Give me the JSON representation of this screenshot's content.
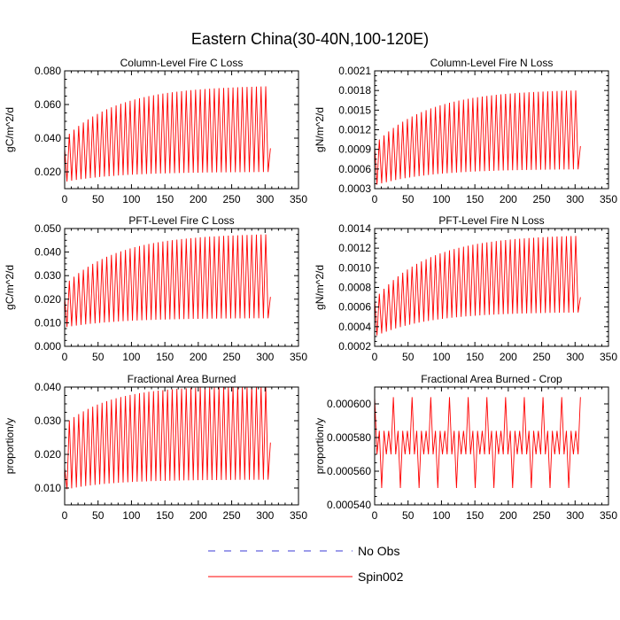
{
  "figure_title": "Eastern China(30-40N,100-120E)",
  "legend": [
    {
      "label": "No Obs",
      "color": "#3b3bd6",
      "style": "dashed"
    },
    {
      "label": "Spin002",
      "color": "#ff0000",
      "style": "solid"
    }
  ],
  "chart_data": [
    {
      "type": "line",
      "title": "Column-Level Fire C Loss",
      "ylabel": "gC/m^2/d",
      "xlabel": "",
      "xlim": [
        0,
        350
      ],
      "ylim": [
        0.01,
        0.08
      ],
      "xticks": [
        0,
        50,
        100,
        150,
        200,
        250,
        300,
        350
      ],
      "yticks": [
        0.02,
        0.04,
        0.06,
        0.08
      ],
      "ytick_labels": [
        "0.020",
        "0.040",
        "0.060",
        "0.080"
      ],
      "series": [
        {
          "name": "Spin002",
          "color": "#ff0000",
          "cycle_months": 7,
          "x_start": 0,
          "x_end": 308,
          "first_value": 0.034,
          "last_value": 0.034,
          "max_start": 0.04,
          "max_end": 0.0715,
          "min_start": 0.014,
          "min_end": 0.02,
          "tau": 80
        }
      ]
    },
    {
      "type": "line",
      "title": "Column-Level Fire N Loss",
      "ylabel": "gN/m^2/d",
      "xlabel": "",
      "xlim": [
        0,
        350
      ],
      "ylim": [
        0.0003,
        0.0021
      ],
      "xticks": [
        0,
        50,
        100,
        150,
        200,
        250,
        300,
        350
      ],
      "yticks": [
        0.0003,
        0.0006,
        0.0009,
        0.0012,
        0.0015,
        0.0018,
        0.0021
      ],
      "ytick_labels": [
        "0.0003",
        "0.0006",
        "0.0009",
        "0.0012",
        "0.0015",
        "0.0018",
        "0.0021"
      ],
      "series": [
        {
          "name": "Spin002",
          "color": "#ff0000",
          "cycle_months": 7,
          "x_start": 0,
          "x_end": 308,
          "first_value": 0.00095,
          "last_value": 0.00095,
          "max_start": 0.00098,
          "max_end": 0.00182,
          "min_start": 0.00035,
          "min_end": 0.0006,
          "tau": 80
        }
      ]
    },
    {
      "type": "line",
      "title": "PFT-Level Fire C Loss",
      "ylabel": "gC/m^2/d",
      "xlabel": "",
      "xlim": [
        0,
        350
      ],
      "ylim": [
        0.0,
        0.05
      ],
      "xticks": [
        0,
        50,
        100,
        150,
        200,
        250,
        300,
        350
      ],
      "yticks": [
        0.0,
        0.01,
        0.02,
        0.03,
        0.04,
        0.05
      ],
      "ytick_labels": [
        "0.000",
        "0.010",
        "0.020",
        "0.030",
        "0.040",
        "0.050"
      ],
      "series": [
        {
          "name": "Spin002",
          "color": "#ff0000",
          "cycle_months": 7,
          "x_start": 0,
          "x_end": 308,
          "first_value": 0.021,
          "last_value": 0.021,
          "max_start": 0.026,
          "max_end": 0.048,
          "min_start": 0.008,
          "min_end": 0.012,
          "tau": 80
        }
      ]
    },
    {
      "type": "line",
      "title": "PFT-Level Fire N Loss",
      "ylabel": "gN/m^2/d",
      "xlabel": "",
      "xlim": [
        0,
        350
      ],
      "ylim": [
        0.0002,
        0.0014
      ],
      "xticks": [
        0,
        50,
        100,
        150,
        200,
        250,
        300,
        350
      ],
      "yticks": [
        0.0002,
        0.0004,
        0.0006,
        0.0008,
        0.001,
        0.0012,
        0.0014
      ],
      "ytick_labels": [
        "0.0002",
        "0.0004",
        "0.0006",
        "0.0008",
        "0.0010",
        "0.0012",
        "0.0014"
      ],
      "series": [
        {
          "name": "Spin002",
          "color": "#ff0000",
          "cycle_months": 7,
          "x_start": 0,
          "x_end": 308,
          "first_value": 0.00068,
          "last_value": 0.0007,
          "max_start": 0.00068,
          "max_end": 0.00134,
          "min_start": 0.0003,
          "min_end": 0.00055,
          "tau": 80
        }
      ]
    },
    {
      "type": "line",
      "title": "Fractional Area Burned",
      "ylabel": "proportion/y",
      "xlabel": "",
      "xlim": [
        0,
        350
      ],
      "ylim": [
        0.005,
        0.04
      ],
      "xticks": [
        0,
        50,
        100,
        150,
        200,
        250,
        300,
        350
      ],
      "yticks": [
        0.01,
        0.02,
        0.03,
        0.04
      ],
      "ytick_labels": [
        "0.010",
        "0.020",
        "0.030",
        "0.040"
      ],
      "series": [
        {
          "name": "Spin002",
          "color": "#ff0000",
          "cycle_months": 7,
          "x_start": 0,
          "x_end": 308,
          "first_value": 0.016,
          "last_value": 0.0235,
          "max_start": 0.029,
          "max_end": 0.0405,
          "min_start": 0.0095,
          "min_end": 0.0125,
          "tau": 70
        }
      ]
    },
    {
      "type": "line",
      "title": "Fractional Area Burned - Crop",
      "ylabel": "proportion/y",
      "xlabel": "",
      "xlim": [
        0,
        350
      ],
      "ylim": [
        0.00054,
        0.00061
      ],
      "xticks": [
        0,
        50,
        100,
        150,
        200,
        250,
        300,
        350
      ],
      "yticks": [
        0.00054,
        0.00056,
        0.00058,
        0.0006
      ],
      "ytick_labels": [
        "0.000540",
        "0.000560",
        "0.000580",
        "0.000600"
      ],
      "series": [
        {
          "name": "Spin002",
          "color": "#ff0000",
          "pattern": "crop",
          "cycle_months": 7,
          "x_start": 0,
          "x_end": 308,
          "peak_values": [
            0.000604,
            0.000584,
            0.00057,
            0.00055
          ]
        }
      ]
    }
  ]
}
